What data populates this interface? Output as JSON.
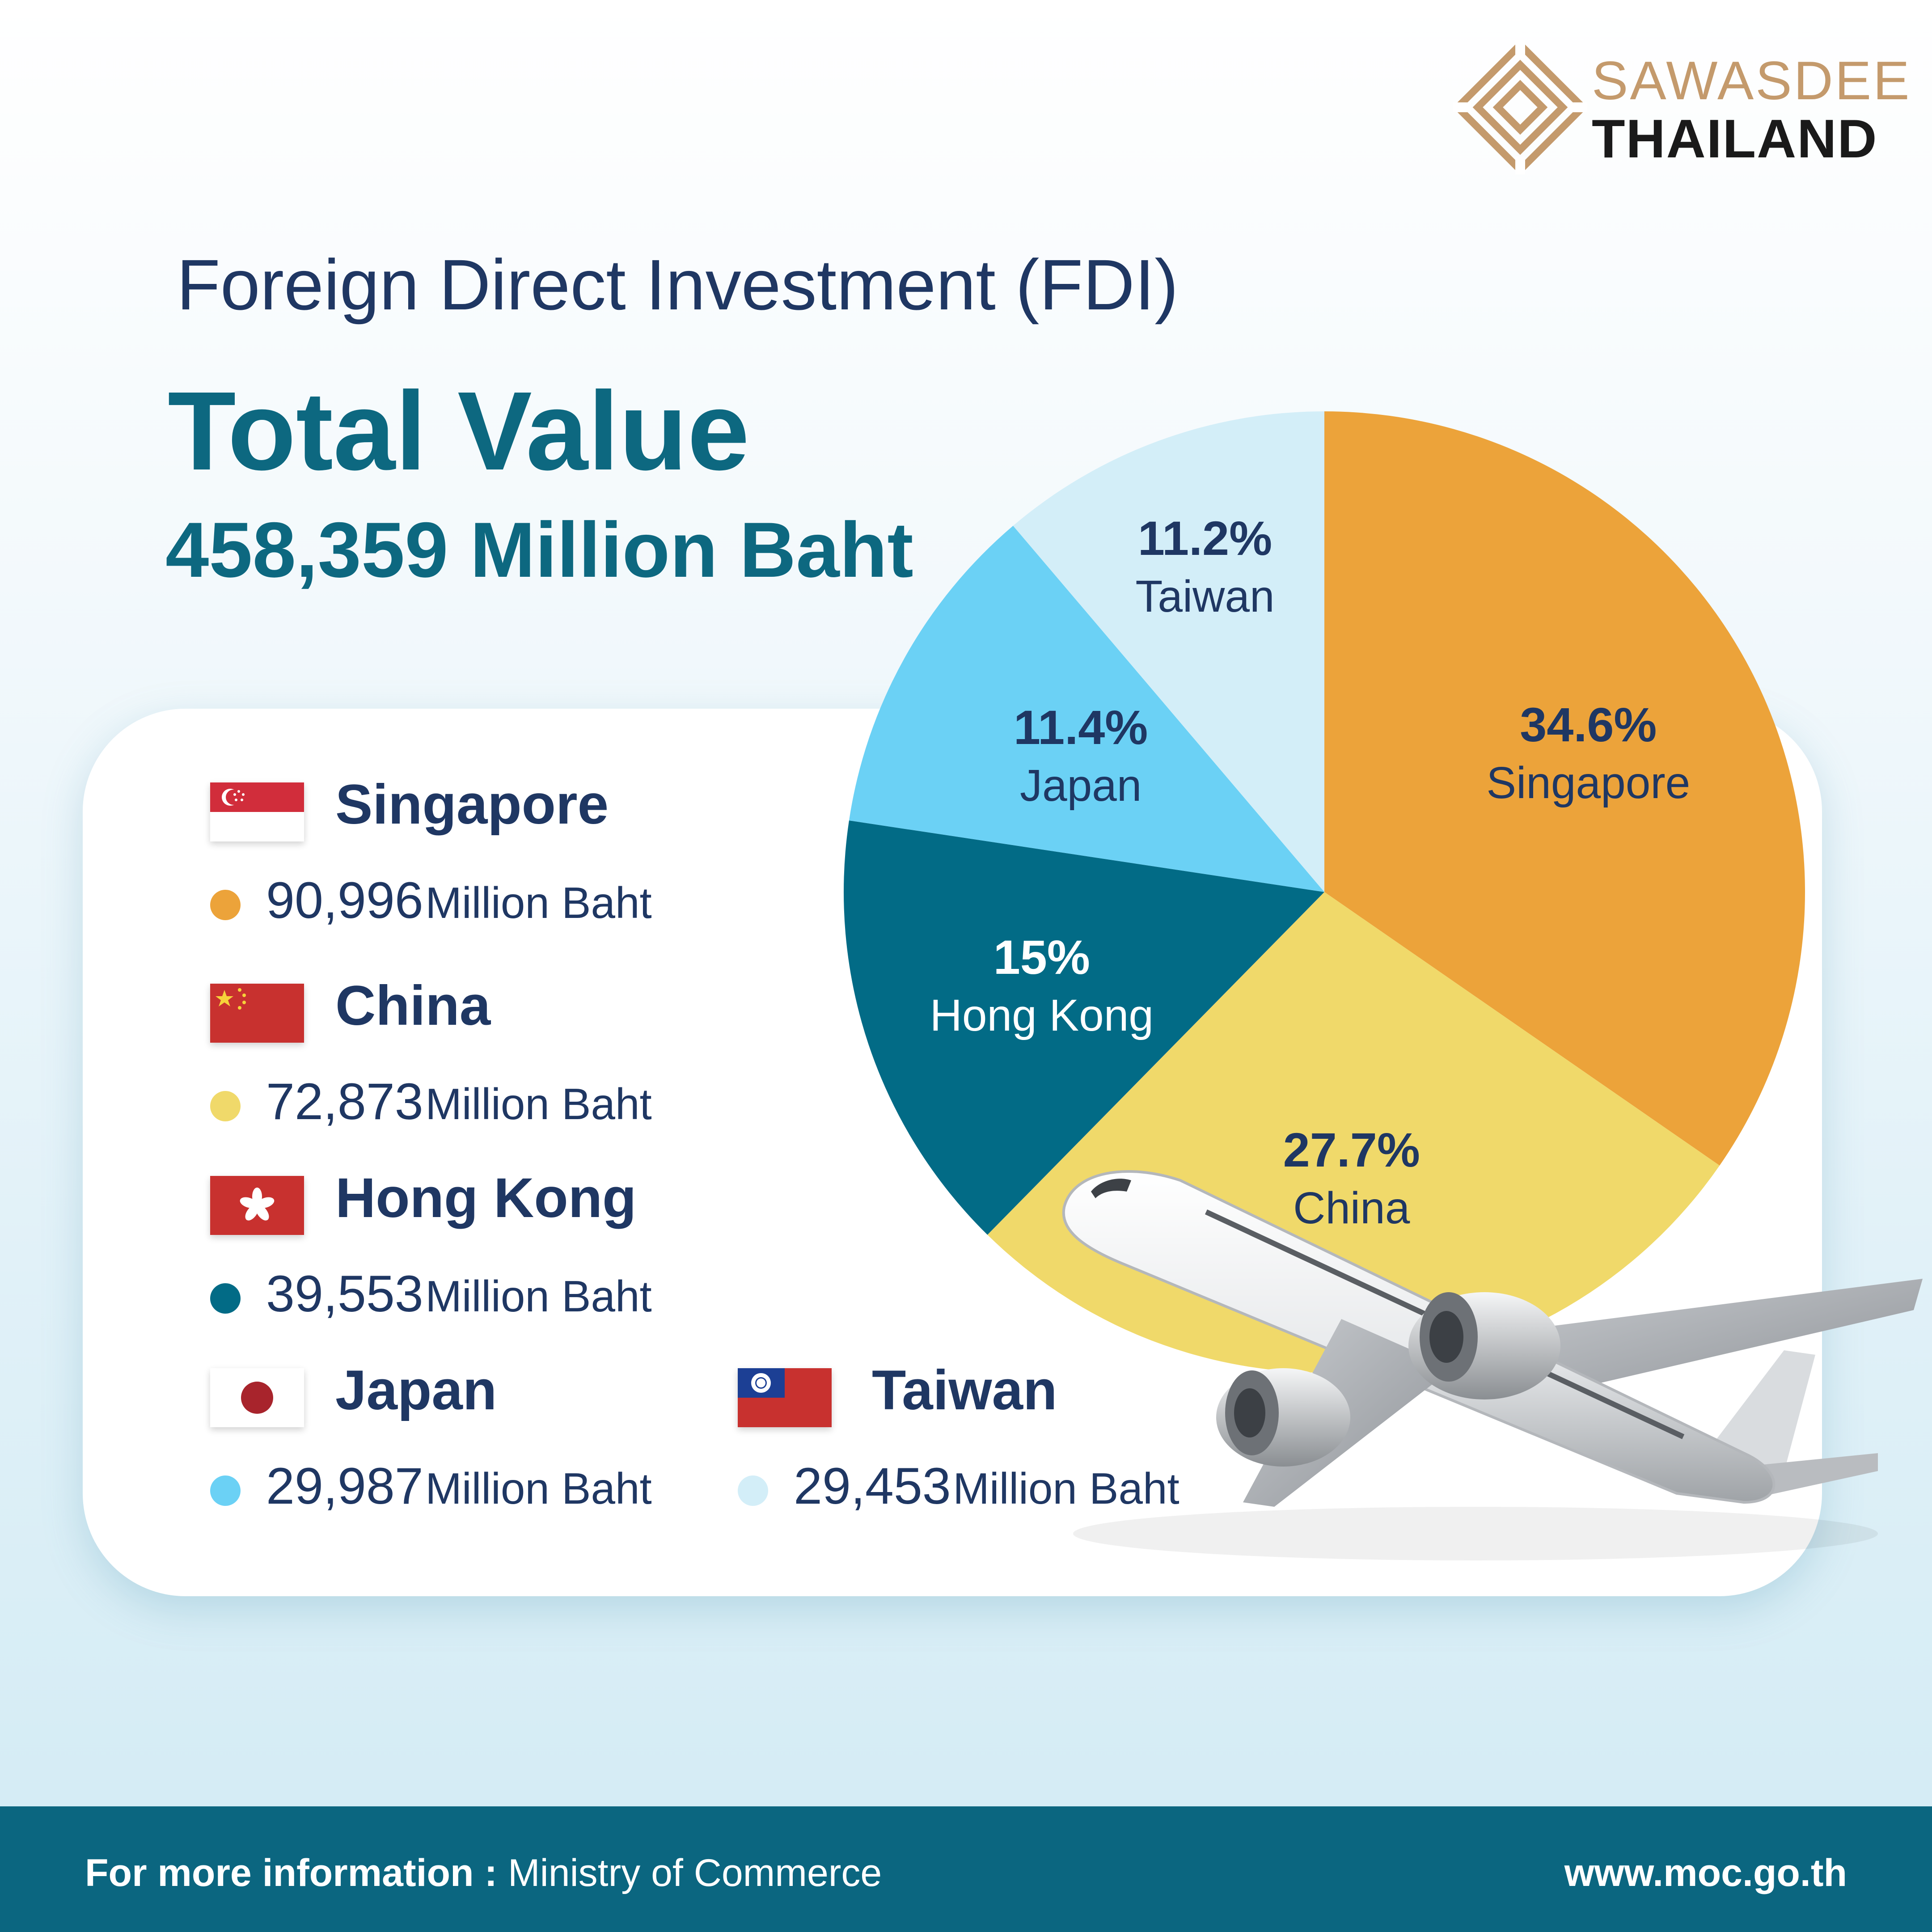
{
  "logo": {
    "line1": "SAWASDEE",
    "line2": "THAILAND"
  },
  "header": {
    "subtitle": "Foreign Direct Investment (FDI)",
    "title": "Total Value",
    "total": "458,359 Million Baht"
  },
  "legend": [
    {
      "country": "Singapore",
      "amount": "90,996",
      "unit": "Million Baht",
      "flag": "singapore-flag",
      "color": "#eca33a"
    },
    {
      "country": "China",
      "amount": "72,873",
      "unit": "Million Baht",
      "flag": "china-flag",
      "color": "#f0d96a"
    },
    {
      "country": "Hong Kong",
      "amount": "39,553",
      "unit": "Million Baht",
      "flag": "hong-kong-flag",
      "color": "#026b86"
    },
    {
      "country": "Japan",
      "amount": "29,987",
      "unit": "Million Baht",
      "flag": "japan-flag",
      "color": "#6bd1f5"
    },
    {
      "country": "Taiwan",
      "amount": "29,453",
      "unit": "Million Baht",
      "flag": "taiwan-flag",
      "color": "#d3eef8"
    }
  ],
  "chart_data": {
    "type": "pie",
    "categories": [
      "Singapore",
      "China",
      "Hong Kong",
      "Japan",
      "Taiwan"
    ],
    "values": [
      34.6,
      27.7,
      15,
      11.4,
      11.2
    ],
    "value_labels": [
      "34.6%",
      "27.7%",
      "15%",
      "11.4%",
      "11.2%"
    ],
    "amounts": [
      90996,
      72873,
      39553,
      29987,
      29453
    ],
    "colors": [
      "#eca33a",
      "#f0d96a",
      "#026b86",
      "#6bd1f5",
      "#d3eef8"
    ],
    "start": "12 o'clock",
    "direction": "clockwise"
  },
  "footer": {
    "label": "For more information :",
    "source": " Ministry of Commerce",
    "url": "www.moc.go.th"
  }
}
